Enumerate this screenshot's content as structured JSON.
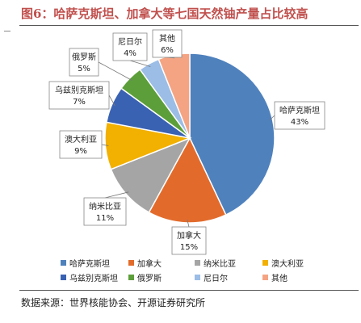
{
  "title": "图6：哈萨克斯坦、加拿大等七国天然铀产量占比较高",
  "source": "数据来源：世界核能协会、开源证券研究所",
  "chart_data": {
    "type": "pie",
    "slices": [
      {
        "label": "哈萨克斯坦",
        "value": 43,
        "display": "43%",
        "color": "#4f81bd"
      },
      {
        "label": "加拿大",
        "value": 15,
        "display": "15%",
        "color": "#e26b2c"
      },
      {
        "label": "纳米比亚",
        "value": 11,
        "display": "11%",
        "color": "#a5a5a5"
      },
      {
        "label": "澳大利亚",
        "value": 9,
        "display": "9%",
        "color": "#f2b000"
      },
      {
        "label": "乌兹别克斯坦",
        "value": 7,
        "display": "7%",
        "color": "#3a62b3"
      },
      {
        "label": "俄罗斯",
        "value": 5,
        "display": "5%",
        "color": "#5c9f3a"
      },
      {
        "label": "尼日尔",
        "value": 4,
        "display": "4%",
        "color": "#9bbde6"
      },
      {
        "label": "其他",
        "value": 6,
        "display": "6%",
        "color": "#f4a483"
      }
    ],
    "legend_position": "bottom"
  }
}
